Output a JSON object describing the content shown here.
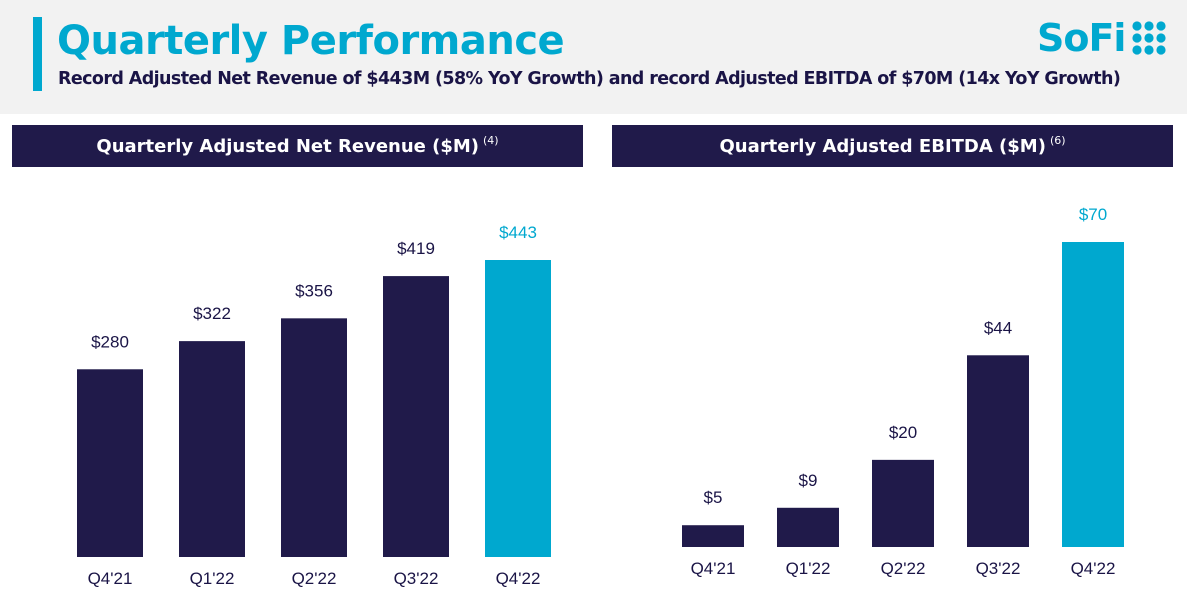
{
  "header": {
    "title": "Quarterly Performance",
    "subtitle": "Record Adjusted Net Revenue of $443M (58% YoY Growth) and record Adjusted EBITDA of $70M (14x YoY Growth)",
    "logo_text": "SoFi",
    "accent_color": "#00a8cf",
    "navy_color": "#201a4a"
  },
  "chart_data": [
    {
      "type": "bar",
      "title": "Quarterly Adjusted Net Revenue ($M)",
      "title_footnote": "(4)",
      "categories": [
        "Q4'21",
        "Q1'22",
        "Q2'22",
        "Q3'22",
        "Q4'22"
      ],
      "values": [
        280,
        322,
        356,
        419,
        443
      ],
      "value_labels": [
        "$280",
        "$322",
        "$356",
        "$419",
        "$443"
      ],
      "bar_colors": [
        "#201a4a",
        "#201a4a",
        "#201a4a",
        "#201a4a",
        "#00a8cf"
      ],
      "label_colors": [
        "#1a1446",
        "#1a1446",
        "#1a1446",
        "#1a1446",
        "#00a8cf"
      ],
      "ylim": [
        0,
        443
      ],
      "grid": false
    },
    {
      "type": "bar",
      "title": "Quarterly Adjusted EBITDA ($M)",
      "title_footnote": "(6)",
      "categories": [
        "Q4'21",
        "Q1'22",
        "Q2'22",
        "Q3'22",
        "Q4'22"
      ],
      "values": [
        5,
        9,
        20,
        44,
        70
      ],
      "value_labels": [
        "$5",
        "$9",
        "$20",
        "$44",
        "$70"
      ],
      "bar_colors": [
        "#201a4a",
        "#201a4a",
        "#201a4a",
        "#201a4a",
        "#00a8cf"
      ],
      "label_colors": [
        "#1a1446",
        "#1a1446",
        "#1a1446",
        "#1a1446",
        "#00a8cf"
      ],
      "ylim": [
        0,
        70
      ],
      "grid": false
    }
  ]
}
